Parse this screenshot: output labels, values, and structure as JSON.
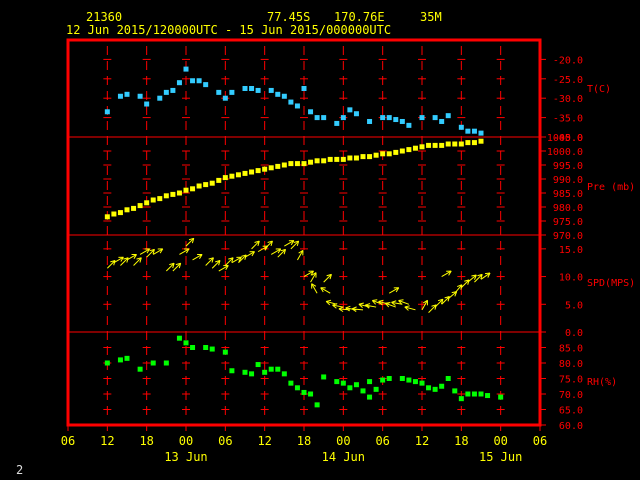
{
  "header": {
    "station_id": "21360",
    "lat": "77.45S",
    "lon": "170.76E",
    "elev": "35M",
    "period": "12 Jun 2015/120000UTC - 15 Jun 2015/000000UTC"
  },
  "footer": {
    "page_number": "2"
  },
  "colors": {
    "frame": "#ff0000",
    "text": "#ffff00",
    "temperature": "#33ccff",
    "pressure": "#ffff00",
    "wind": "#ffff00",
    "humidity": "#00ff00",
    "grid": "#ff0000"
  },
  "chart_data": {
    "type": "scatter",
    "x_ticks": [
      "06",
      "12",
      "18",
      "00",
      "06",
      "12",
      "18",
      "00",
      "06",
      "12",
      "18",
      "00",
      "06"
    ],
    "x_hours": [
      -6,
      0,
      6,
      12,
      18,
      24,
      30,
      36,
      42,
      48,
      54,
      60,
      66
    ],
    "date_labels": [
      {
        "label": "13 Jun",
        "hour": 12
      },
      {
        "label": "14 Jun",
        "hour": 36
      },
      {
        "label": "15 Jun",
        "hour": 60
      }
    ],
    "panels": [
      {
        "name": "T(C)",
        "ylim": [
          -40,
          -15
        ],
        "ticks": [
          -20.0,
          -25.0,
          -30.0,
          -35.0,
          -40.0
        ],
        "tick_labels": [
          "-20.0",
          "-25.0",
          "-30.0",
          "-35.0",
          "-40.0"
        ],
        "kind": "points",
        "color_key": "temperature",
        "points": [
          [
            0,
            -33.5
          ],
          [
            2,
            -29.5
          ],
          [
            3,
            -29
          ],
          [
            5,
            -29.5
          ],
          [
            6,
            -31.5
          ],
          [
            8,
            -30
          ],
          [
            9,
            -28.5
          ],
          [
            10,
            -28
          ],
          [
            11,
            -26
          ],
          [
            12,
            -22.5
          ],
          [
            13,
            -25.5
          ],
          [
            14,
            -25.5
          ],
          [
            15,
            -26.5
          ],
          [
            17,
            -28.5
          ],
          [
            18,
            -30
          ],
          [
            19,
            -28.5
          ],
          [
            21,
            -27.5
          ],
          [
            22,
            -27.5
          ],
          [
            23,
            -28
          ],
          [
            25,
            -28
          ],
          [
            26,
            -29
          ],
          [
            27,
            -29.5
          ],
          [
            28,
            -31
          ],
          [
            29,
            -32
          ],
          [
            30,
            -27.5
          ],
          [
            31,
            -33.5
          ],
          [
            32,
            -35
          ],
          [
            33,
            -35
          ],
          [
            35,
            -36.5
          ],
          [
            36,
            -35
          ],
          [
            37,
            -33
          ],
          [
            38,
            -34
          ],
          [
            40,
            -36
          ],
          [
            42,
            -35
          ],
          [
            43,
            -35
          ],
          [
            44,
            -35.5
          ],
          [
            45,
            -36
          ],
          [
            46,
            -37
          ],
          [
            48,
            -35
          ],
          [
            50,
            -35
          ],
          [
            51,
            -36
          ],
          [
            52,
            -34.5
          ],
          [
            54,
            -37.5
          ],
          [
            55,
            -38.5
          ],
          [
            56,
            -38.5
          ],
          [
            57,
            -39
          ]
        ]
      },
      {
        "name": "Pre (mb)",
        "ylim": [
          970,
          1005
        ],
        "ticks": [
          1005.0,
          1000.0,
          995.0,
          990.0,
          985.0,
          980.0,
          975.0,
          970.0
        ],
        "tick_labels": [
          "1005.0",
          "1000.0",
          "995.0",
          "990.0",
          "985.0",
          "980.0",
          "975.0",
          "970.0"
        ],
        "kind": "points",
        "color_key": "pressure",
        "points": [
          [
            0,
            976.5
          ],
          [
            1,
            977.5
          ],
          [
            2,
            978
          ],
          [
            3,
            979
          ],
          [
            4,
            979.5
          ],
          [
            5,
            980.5
          ],
          [
            6,
            981.5
          ],
          [
            7,
            982.5
          ],
          [
            8,
            983
          ],
          [
            9,
            984
          ],
          [
            10,
            984.5
          ],
          [
            11,
            985
          ],
          [
            12,
            986
          ],
          [
            13,
            986.5
          ],
          [
            14,
            987.5
          ],
          [
            15,
            988
          ],
          [
            16,
            988.5
          ],
          [
            17,
            989.5
          ],
          [
            18,
            990.5
          ],
          [
            19,
            991
          ],
          [
            20,
            991.5
          ],
          [
            21,
            992
          ],
          [
            22,
            992.5
          ],
          [
            23,
            993
          ],
          [
            24,
            993.5
          ],
          [
            25,
            994
          ],
          [
            26,
            994.5
          ],
          [
            27,
            995
          ],
          [
            28,
            995.5
          ],
          [
            29,
            995.5
          ],
          [
            30,
            995.5
          ],
          [
            31,
            996
          ],
          [
            32,
            996.5
          ],
          [
            33,
            996.5
          ],
          [
            34,
            997
          ],
          [
            35,
            997
          ],
          [
            36,
            997
          ],
          [
            37,
            997.5
          ],
          [
            38,
            997.5
          ],
          [
            39,
            998
          ],
          [
            40,
            998
          ],
          [
            41,
            998.5
          ],
          [
            42,
            999
          ],
          [
            43,
            999
          ],
          [
            44,
            999.5
          ],
          [
            45,
            1000
          ],
          [
            46,
            1000.5
          ],
          [
            47,
            1001
          ],
          [
            48,
            1001.5
          ],
          [
            49,
            1002
          ],
          [
            50,
            1002
          ],
          [
            51,
            1002
          ],
          [
            52,
            1002.5
          ],
          [
            53,
            1002.5
          ],
          [
            54,
            1002.5
          ],
          [
            55,
            1003
          ],
          [
            56,
            1003
          ],
          [
            57,
            1003.5
          ]
        ]
      },
      {
        "name": "SPD(MPS)",
        "ylim": [
          0,
          17.5
        ],
        "ticks": [
          15.0,
          10.0,
          5.0,
          0.0
        ],
        "tick_labels": [
          "15.0",
          "10.0",
          "5.0",
          "0.0"
        ],
        "kind": "arrows",
        "color_key": "wind",
        "points": [
          [
            0,
            11.5,
            45
          ],
          [
            1,
            12.5,
            30
          ],
          [
            2,
            12,
            45
          ],
          [
            3,
            13,
            30
          ],
          [
            4,
            12,
            45
          ],
          [
            5,
            14,
            30
          ],
          [
            6,
            13.5,
            45
          ],
          [
            7,
            14,
            30
          ],
          [
            9,
            11,
            45
          ],
          [
            10,
            11,
            45
          ],
          [
            11,
            14,
            30
          ],
          [
            12,
            15.5,
            45
          ],
          [
            13,
            13,
            30
          ],
          [
            15,
            12,
            45
          ],
          [
            16,
            11.5,
            45
          ],
          [
            17,
            11,
            30
          ],
          [
            18,
            12,
            45
          ],
          [
            19,
            12.5,
            30
          ],
          [
            20,
            12.5,
            45
          ],
          [
            21,
            13.5,
            30
          ],
          [
            22,
            15,
            45
          ],
          [
            23,
            14.5,
            30
          ],
          [
            24,
            15,
            45
          ],
          [
            25,
            14,
            30
          ],
          [
            26,
            13.5,
            45
          ],
          [
            27,
            15.5,
            30
          ],
          [
            28,
            15,
            45
          ],
          [
            29,
            13,
            60
          ],
          [
            30,
            10,
            30
          ],
          [
            31,
            9,
            60
          ],
          [
            32,
            7,
            120
          ],
          [
            33,
            9,
            45
          ],
          [
            34,
            7,
            150
          ],
          [
            35,
            5,
            165
          ],
          [
            36,
            4.5,
            170
          ],
          [
            37,
            4,
            175
          ],
          [
            38,
            4,
            170
          ],
          [
            39,
            4,
            175
          ],
          [
            40,
            4.5,
            165
          ],
          [
            41,
            4.5,
            170
          ],
          [
            42,
            5,
            160
          ],
          [
            43,
            5,
            165
          ],
          [
            44,
            4.5,
            160
          ],
          [
            45,
            5,
            170
          ],
          [
            46,
            5,
            160
          ],
          [
            47,
            4,
            165
          ],
          [
            48,
            4,
            60
          ],
          [
            49,
            3.5,
            45
          ],
          [
            50,
            4.5,
            45
          ],
          [
            51,
            5,
            45
          ],
          [
            52,
            6,
            40
          ],
          [
            53,
            7,
            50
          ],
          [
            54,
            8,
            45
          ],
          [
            55,
            9,
            40
          ],
          [
            56,
            9,
            45
          ],
          [
            57,
            9.5,
            35
          ],
          [
            43,
            7,
            30
          ],
          [
            51,
            10,
            30
          ]
        ]
      },
      {
        "name": "RH(%)",
        "ylim": [
          60,
          90
        ],
        "ticks": [
          85.0,
          80.0,
          75.0,
          70.0,
          65.0,
          60.0
        ],
        "tick_labels": [
          "85.0",
          "80.0",
          "75.0",
          "70.0",
          "65.0",
          "60.0"
        ],
        "kind": "points",
        "color_key": "humidity",
        "points": [
          [
            0,
            80
          ],
          [
            2,
            81
          ],
          [
            3,
            81.5
          ],
          [
            5,
            78
          ],
          [
            7,
            80
          ],
          [
            9,
            80
          ],
          [
            11,
            88
          ],
          [
            12,
            86.5
          ],
          [
            13,
            85
          ],
          [
            15,
            85
          ],
          [
            16,
            84.5
          ],
          [
            18,
            83.5
          ],
          [
            19,
            77.5
          ],
          [
            21,
            77
          ],
          [
            22,
            76.5
          ],
          [
            23,
            79.5
          ],
          [
            24,
            77
          ],
          [
            25,
            78
          ],
          [
            26,
            78
          ],
          [
            27,
            76.5
          ],
          [
            28,
            73.5
          ],
          [
            29,
            72
          ],
          [
            30,
            70.5
          ],
          [
            31,
            70
          ],
          [
            32,
            66.5
          ],
          [
            33,
            75.5
          ],
          [
            35,
            74
          ],
          [
            36,
            73.5
          ],
          [
            37,
            72
          ],
          [
            38,
            73
          ],
          [
            39,
            71
          ],
          [
            40,
            69
          ],
          [
            40,
            74
          ],
          [
            41,
            71.5
          ],
          [
            42,
            74.5
          ],
          [
            43,
            75
          ],
          [
            45,
            75
          ],
          [
            46,
            74.5
          ],
          [
            47,
            74
          ],
          [
            48,
            73.5
          ],
          [
            49,
            72
          ],
          [
            50,
            71.5
          ],
          [
            51,
            72.5
          ],
          [
            52,
            75
          ],
          [
            53,
            71
          ],
          [
            54,
            68.5
          ],
          [
            55,
            70
          ],
          [
            56,
            70
          ],
          [
            57,
            70
          ],
          [
            58,
            69.5
          ],
          [
            60,
            69
          ]
        ]
      }
    ]
  }
}
